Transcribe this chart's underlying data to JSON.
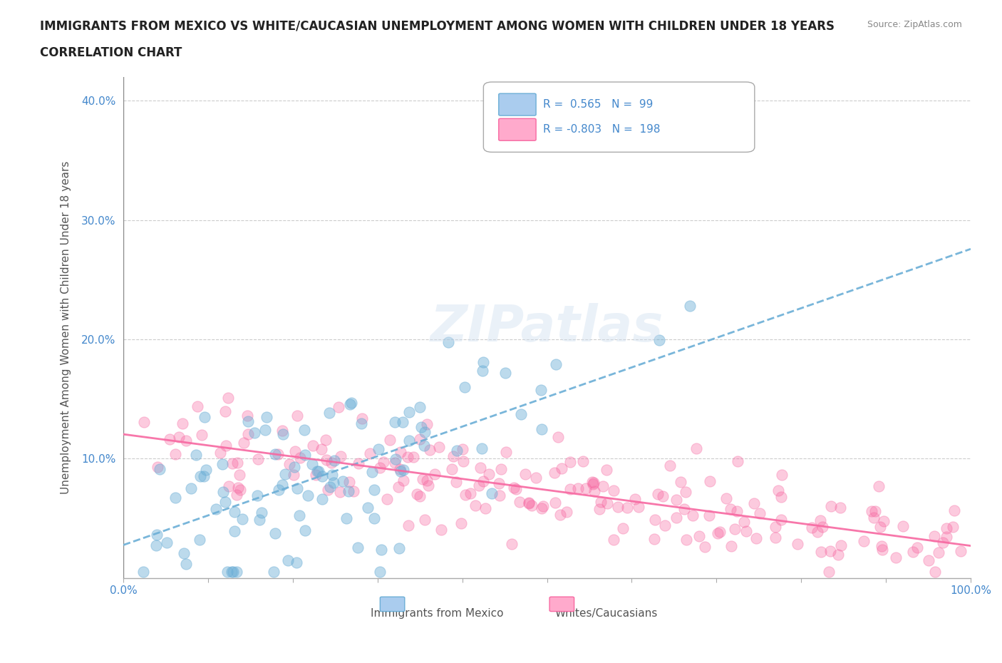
{
  "title_line1": "IMMIGRANTS FROM MEXICO VS WHITE/CAUCASIAN UNEMPLOYMENT AMONG WOMEN WITH CHILDREN UNDER 18 YEARS",
  "title_line2": "CORRELATION CHART",
  "source_text": "Source: ZipAtlas.com",
  "xlabel": "",
  "ylabel": "Unemployment Among Women with Children Under 18 years",
  "xlim": [
    0,
    1.0
  ],
  "ylim": [
    0,
    0.42
  ],
  "yticks": [
    0,
    0.1,
    0.2,
    0.3,
    0.4
  ],
  "ytick_labels": [
    "",
    "10.0%",
    "20.0%",
    "30.0%",
    "40.0%"
  ],
  "xticks": [
    0,
    0.1,
    0.2,
    0.3,
    0.4,
    0.5,
    0.6,
    0.7,
    0.8,
    0.9,
    1.0
  ],
  "xtick_labels": [
    "0.0%",
    "",
    "",
    "",
    "",
    "",
    "",
    "",
    "",
    "",
    "100.0%"
  ],
  "blue_color": "#6baed6",
  "pink_color": "#f768a1",
  "blue_label": "Immigrants from Mexico",
  "pink_label": "Whites/Caucasians",
  "R_blue": 0.565,
  "N_blue": 99,
  "R_pink": -0.803,
  "N_pink": 198,
  "watermark": "ZIPatlas",
  "background_color": "#ffffff",
  "grid_color": "#cccccc",
  "seed": 42
}
